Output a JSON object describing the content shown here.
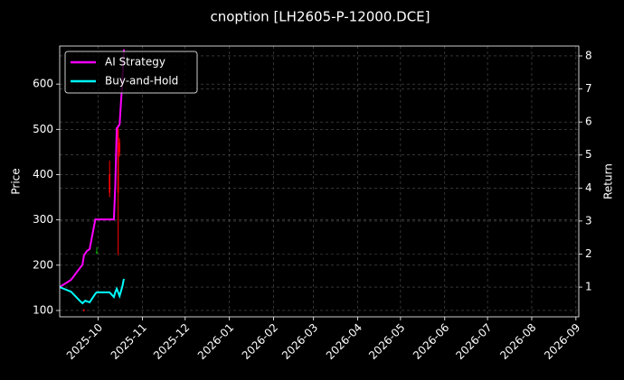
{
  "chart_data": {
    "type": "line",
    "title": "cnoption [LH2605-P-12000.DCE]",
    "ylabel": "Price",
    "y2label": "Return",
    "grid": true,
    "legend": "upper left",
    "x": [
      "2025-09-04",
      "2025-09-12",
      "2025-09-18",
      "2025-09-20",
      "2025-09-21",
      "2025-09-22",
      "2025-09-23",
      "2025-09-25",
      "2025-09-29",
      "2025-09-30",
      "2025-10-09",
      "2025-10-12",
      "2025-10-13",
      "2025-10-14",
      "2025-10-16",
      "2025-10-18",
      "2025-10-19"
    ],
    "series": [
      {
        "name": "AI Strategy",
        "color": "#ff00ff",
        "axis": "y2",
        "values": [
          1.0,
          1.22,
          1.57,
          1.68,
          1.96,
          2.02,
          2.09,
          2.15,
          3.05,
          3.05,
          3.05,
          3.05,
          4.09,
          5.81,
          5.92,
          7.28,
          8.2
        ]
      },
      {
        "name": "Buy-and-Hold",
        "color": "#00ffff",
        "axis": "y2",
        "values": [
          1.0,
          0.86,
          0.59,
          0.51,
          0.55,
          0.59,
          0.57,
          0.54,
          0.8,
          0.84,
          0.84,
          0.7,
          0.85,
          0.95,
          0.73,
          1.03,
          1.25
        ]
      }
    ],
    "candles": [
      {
        "date": "2025-09-21",
        "open": 102,
        "high": 103,
        "low": 98,
        "close": 99
      },
      {
        "date": "2025-09-30",
        "open": 225,
        "high": 240,
        "low": 225,
        "close": 230
      },
      {
        "date": "2025-10-09",
        "open": 400,
        "high": 431,
        "low": 350,
        "close": 360
      },
      {
        "date": "2025-10-15",
        "open": 500,
        "high": 510,
        "low": 222,
        "close": 360
      },
      {
        "date": "2025-10-16",
        "open": 470,
        "high": 480,
        "low": 440,
        "close": 450
      }
    ],
    "up_color": "#00aa00",
    "down_color": "#ff0000",
    "xlim": [
      "2025-09-04",
      "2026-09-03"
    ],
    "xticks": [
      "2025-10",
      "2025-11",
      "2025-12",
      "2026-01",
      "2026-02",
      "2026-03",
      "2026-04",
      "2026-05",
      "2026-06",
      "2026-07",
      "2026-08",
      "2026-09"
    ],
    "ylim": [
      86,
      684
    ],
    "yticks": [
      100,
      200,
      300,
      400,
      500,
      600
    ],
    "y2lim": [
      0.1,
      8.3
    ],
    "y2ticks": [
      1,
      2,
      3,
      4,
      5,
      6,
      7,
      8
    ]
  }
}
